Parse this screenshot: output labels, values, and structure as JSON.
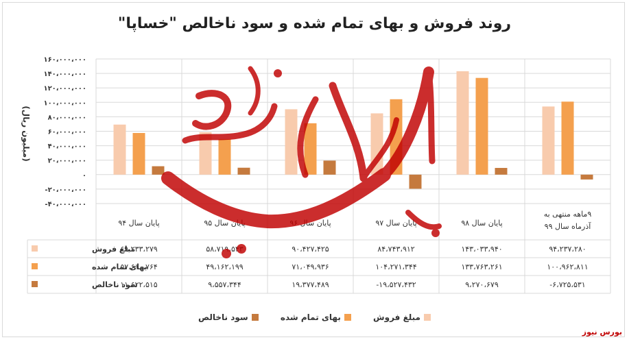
{
  "title": "روند فروش و بهای تمام شده و سود ناخالص \"خساپا\"",
  "source": "بورس نیوز",
  "watermark_text": "بورس نیوز",
  "colors": {
    "sales": "#f8cbad",
    "cost": "#f4a04e",
    "profit": "#c57a3e",
    "watermark": "#c00000",
    "grid": "#d9d9d9"
  },
  "chart_data": {
    "type": "bar",
    "title": "روند فروش و بهای تمام شده و سود ناخالص \"خساپا\"",
    "ylabel": "(میلیون ریال)",
    "xlabel": "",
    "ylim": [
      -40000000,
      160000000
    ],
    "yticks": [
      -40000000,
      -20000000,
      0,
      20000000,
      40000000,
      60000000,
      80000000,
      100000000,
      120000000,
      140000000,
      160000000
    ],
    "ytick_labels": [
      "-۴۰،۰۰۰،۰۰۰",
      "-۲۰،۰۰۰،۰۰۰",
      "۰",
      "۲۰،۰۰۰،۰۰۰",
      "۴۰،۰۰۰،۰۰۰",
      "۶۰،۰۰۰،۰۰۰",
      "۸۰،۰۰۰،۰۰۰",
      "۱۰۰،۰۰۰،۰۰۰",
      "۱۲۰،۰۰۰،۰۰۰",
      "۱۴۰،۰۰۰،۰۰۰",
      "۱۶۰،۰۰۰،۰۰۰"
    ],
    "categories": [
      "پایان سال ۹۴",
      "پایان سال ۹۵",
      "پایان سال ۹۶",
      "پایان سال ۹۷",
      "پایان سال ۹۸",
      "۹ماهه منتهی به آذرماه سال ۹۹"
    ],
    "grid": true,
    "legend_position": "bottom",
    "series": [
      {
        "name": "مبلغ فروش",
        "values": [
          69233279,
          58719543,
          90427425,
          84743912,
          143033940,
          94237280
        ],
        "labels": [
          "۶۹،۲۳۳،۲۷۹",
          "۵۸،۷۱۹،۵۴۳",
          "۹۰،۴۲۷،۴۲۵",
          "۸۴،۷۴۳،۹۱۲",
          "۱۴۳،۰۳۳،۹۴۰",
          "۹۴،۲۳۷،۲۸۰"
        ]
      },
      {
        "name": "بهای تمام شده",
        "values": [
          57610764,
          49162199,
          71049936,
          104271344,
          133763261,
          100962811
        ],
        "labels": [
          "۵۷،۶۱۰،۷۶۴",
          "۴۹،۱۶۲،۱۹۹",
          "۷۱،۰۴۹،۹۳۶",
          "۱۰۴،۲۷۱،۳۴۴",
          "۱۳۳،۷۶۳،۲۶۱",
          "۱۰۰،۹۶۲،۸۱۱"
        ]
      },
      {
        "name": "سود ناخالص",
        "values": [
          11622515,
          9557344,
          19377489,
          -19527432,
          9270679,
          -6725531
        ],
        "labels": [
          "۱۱،۶۲۲،۵۱۵",
          "۹،۵۵۷،۳۴۴",
          "۱۹،۳۷۷،۴۸۹",
          "-۱۹،۵۲۷،۴۳۲",
          "۹،۲۷۰،۶۷۹",
          "-۶،۷۲۵،۵۳۱"
        ]
      }
    ]
  }
}
